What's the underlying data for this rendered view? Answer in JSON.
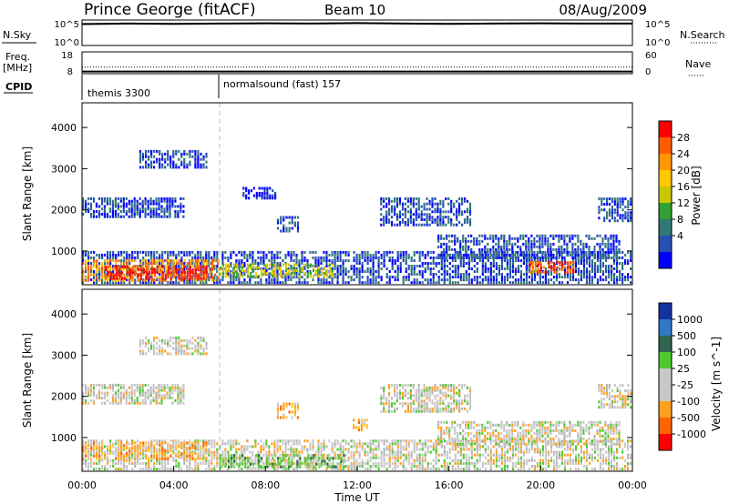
{
  "header": {
    "station": "Prince George (fitACF)",
    "beam": "Beam 10",
    "date": "08/Aug/2009"
  },
  "chart_data": [
    {
      "type": "line",
      "panel": "noise",
      "left_label": "N.Sky",
      "left_ticks": [
        "10^5",
        "10^0"
      ],
      "right_label": "N.Search",
      "right_ticks": [
        "10^5",
        "10^0"
      ],
      "series": [
        {
          "style": "solid",
          "values": [
            4.2,
            4.3,
            4.25,
            4.3,
            4.35,
            4.3,
            4.4,
            4.3,
            4.25,
            4.3,
            4.35,
            4.3,
            4.3
          ]
        },
        {
          "style": "dotted",
          "values": [
            4.35,
            4.4,
            4.35,
            4.4,
            4.45,
            4.4,
            4.5,
            4.4,
            4.35,
            4.4,
            4.45,
            4.4,
            4.4
          ]
        }
      ]
    },
    {
      "type": "line",
      "panel": "frequency",
      "left_label": "Freq.",
      "left_unit": "[MHz]",
      "left_ticks": [
        "18",
        "8"
      ],
      "right_label": "Nave",
      "right_ticks": [
        "60",
        "0"
      ],
      "series": [
        {
          "style": "dotted",
          "values": [
            11,
            11,
            11,
            11,
            11,
            11,
            11,
            11,
            11,
            11,
            11,
            11,
            11
          ]
        },
        {
          "style": "solid",
          "values": [
            9,
            9,
            9,
            9,
            9,
            9,
            9,
            9,
            9,
            9,
            9,
            9,
            9
          ]
        }
      ]
    },
    {
      "type": "table",
      "panel": "cpid",
      "label": "CPID",
      "segments": [
        {
          "start_hour": 0,
          "label": "themis 3300"
        },
        {
          "start_hour": 6,
          "label": "normalsound (fast) 157"
        }
      ]
    },
    {
      "type": "heatmap",
      "panel": "power",
      "ylabel": "Slant Range [km]",
      "yticks": [
        1000,
        2000,
        3000,
        4000
      ],
      "ylim": [
        180,
        4600
      ],
      "xlim": [
        0,
        24
      ],
      "colorbar": {
        "label": "Power [dB]",
        "ticks": [
          "28",
          "24",
          "20",
          "16",
          "12",
          "8",
          "4"
        ],
        "colors": [
          "#ff0000",
          "#ff5a00",
          "#ff9600",
          "#ffc800",
          "#c8c800",
          "#32a032",
          "#327878",
          "#2850b4",
          "#0000ff"
        ]
      },
      "patches": [
        {
          "t0": 0.0,
          "t1": 24.0,
          "r0": 200,
          "r1": 1000,
          "level": 1
        },
        {
          "t0": 0.0,
          "t1": 6.0,
          "r0": 250,
          "r1": 800,
          "level": 6
        },
        {
          "t0": 1.0,
          "t1": 5.5,
          "r0": 300,
          "r1": 650,
          "level": 8
        },
        {
          "t0": 6.0,
          "t1": 11.0,
          "r0": 350,
          "r1": 700,
          "level": 4
        },
        {
          "t0": 19.5,
          "t1": 21.5,
          "r0": 450,
          "r1": 750,
          "level": 7
        },
        {
          "t0": 2.5,
          "t1": 5.5,
          "r0": 3000,
          "r1": 3450,
          "level": 1
        },
        {
          "t0": 0.0,
          "t1": 4.5,
          "r0": 1800,
          "r1": 2300,
          "level": 1
        },
        {
          "t0": 7.0,
          "t1": 8.5,
          "r0": 2250,
          "r1": 2550,
          "level": 0
        },
        {
          "t0": 8.5,
          "t1": 9.5,
          "r0": 1450,
          "r1": 1850,
          "level": 1
        },
        {
          "t0": 13.0,
          "t1": 17.0,
          "r0": 1600,
          "r1": 2300,
          "level": 1
        },
        {
          "t0": 15.5,
          "t1": 23.5,
          "r0": 800,
          "r1": 1400,
          "level": 1
        },
        {
          "t0": 22.5,
          "t1": 24.0,
          "r0": 1700,
          "r1": 2300,
          "level": 1
        }
      ]
    },
    {
      "type": "heatmap",
      "panel": "velocity",
      "ylabel": "Slant Range [km]",
      "yticks": [
        1000,
        2000,
        3000,
        4000
      ],
      "ylim": [
        180,
        4600
      ],
      "xlim": [
        0,
        24
      ],
      "xticks": [
        "00:00",
        "04:00",
        "08:00",
        "12:00",
        "16:00",
        "20:00",
        "00:00"
      ],
      "xlabel": "Time UT",
      "colorbar": {
        "label": "Velocity [m s^-1]",
        "ticks": [
          "1000",
          "500",
          "100",
          "25",
          "-25",
          "-100",
          "-500",
          "-1000"
        ],
        "colors": [
          "#1432a0",
          "#3278c8",
          "#326450",
          "#50c832",
          "#c8c8c8",
          "#c8c8c8",
          "#ffa01e",
          "#ff6400",
          "#ff0000"
        ]
      },
      "patches": [
        {
          "t0": 0.0,
          "t1": 24.0,
          "r0": 200,
          "r1": 950,
          "tone": "gray"
        },
        {
          "t0": 0.0,
          "t1": 5.5,
          "r0": 450,
          "r1": 900,
          "tone": "orange"
        },
        {
          "t0": 6.0,
          "t1": 11.5,
          "r0": 250,
          "r1": 600,
          "tone": "green"
        },
        {
          "t0": 2.5,
          "t1": 5.5,
          "r0": 3000,
          "r1": 3450,
          "tone": "gray"
        },
        {
          "t0": 0.0,
          "t1": 4.5,
          "r0": 1800,
          "r1": 2300,
          "tone": "gray"
        },
        {
          "t0": 8.5,
          "t1": 9.5,
          "r0": 1450,
          "r1": 1850,
          "tone": "orange"
        },
        {
          "t0": 11.8,
          "t1": 12.5,
          "r0": 1150,
          "r1": 1450,
          "tone": "orange"
        },
        {
          "t0": 13.0,
          "t1": 17.0,
          "r0": 1600,
          "r1": 2300,
          "tone": "gray"
        },
        {
          "t0": 15.5,
          "t1": 23.5,
          "r0": 800,
          "r1": 1400,
          "tone": "gray"
        },
        {
          "t0": 22.5,
          "t1": 24.0,
          "r0": 1700,
          "r1": 2300,
          "tone": "gray"
        }
      ]
    }
  ]
}
